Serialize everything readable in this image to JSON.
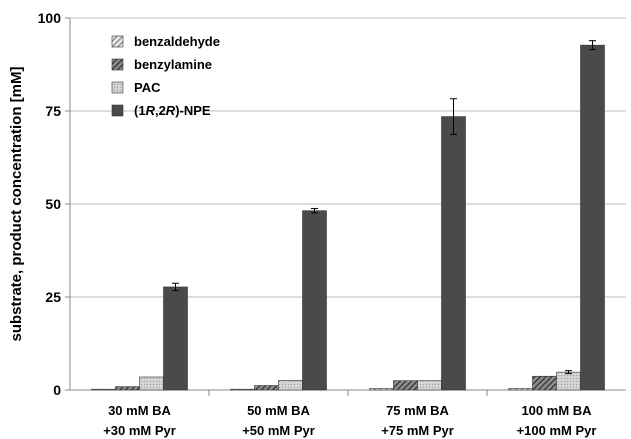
{
  "chart_data": {
    "type": "bar",
    "categories": [
      [
        "30 mM BA",
        "+30 mM Pyr"
      ],
      [
        "50 mM BA",
        "+50 mM Pyr"
      ],
      [
        "75 mM BA",
        "+75 mM Pyr"
      ],
      [
        "100 mM BA",
        "+100 mM Pyr"
      ]
    ],
    "series": [
      {
        "name": "benzaldehyde",
        "values": [
          0.1,
          0.1,
          0.4,
          0.4
        ],
        "errors": [
          0,
          0,
          0,
          0
        ],
        "color": "#b0b0b0",
        "pattern": "diag-light"
      },
      {
        "name": "benzylamine",
        "values": [
          0.9,
          1.2,
          2.5,
          3.7
        ],
        "errors": [
          0,
          0,
          0,
          0
        ],
        "color": "#5a5a5a",
        "pattern": "diag-dark"
      },
      {
        "name": "PAC",
        "values": [
          3.5,
          2.6,
          2.5,
          4.8
        ],
        "errors": [
          0,
          0,
          0,
          0.4
        ],
        "color": "#cfcfcf",
        "pattern": "dots"
      },
      {
        "name_parts": [
          "(1",
          "R",
          ",2",
          "R",
          ")-NPE"
        ],
        "values": [
          27.7,
          48.2,
          73.5,
          92.7
        ],
        "errors": [
          1.0,
          0.6,
          4.8,
          1.2
        ],
        "color": "#4a4a4a",
        "pattern": "solid"
      }
    ],
    "ylabel": "substrate, product concentration [mM]",
    "ylim": [
      0,
      100
    ],
    "yticks": [
      0,
      25,
      50,
      75,
      100
    ],
    "grid": true,
    "legend_position": "top-left"
  }
}
